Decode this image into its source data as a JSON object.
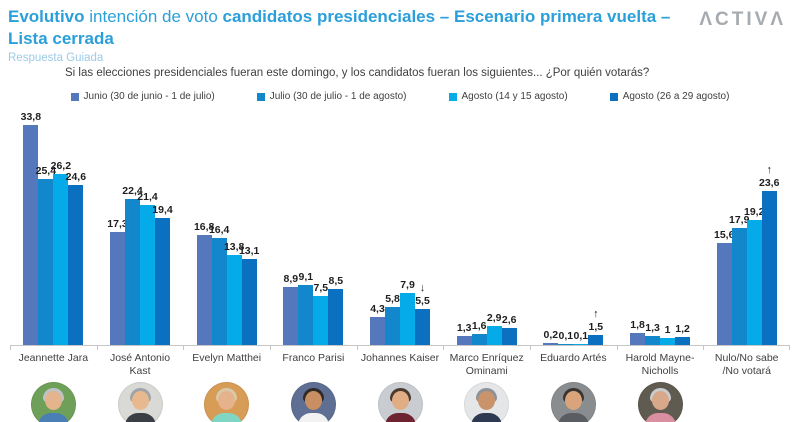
{
  "header": {
    "title_part1": "Evolutivo",
    "title_part2": " intención de voto ",
    "title_part3": "candidatos presidenciales – Escenario primera vuelta – Lista cerrada",
    "subtitle": "Respuesta Guiada",
    "question": "Si las elecciones presidenciales fueran este domingo, y los candidatos fueran los siguientes... ¿Por quién votarás?",
    "logo": "ΛCTIVΛ",
    "title_color": "#2B9FD9",
    "logo_color": "#A6ABB0"
  },
  "chart_data": {
    "type": "bar",
    "title": "Evolutivo intención de voto candidatos presidenciales – Escenario primera vuelta – Lista cerrada",
    "xlabel": "",
    "ylabel": "",
    "ylim": [
      0,
      35
    ],
    "grid": false,
    "legend_position": "top-center",
    "decimal_separator": ",",
    "categories": [
      "Jeannette Jara",
      "José Antonio Kast",
      "Evelyn Matthei",
      "Franco Parisi",
      "Johannes Kaiser",
      "Marco Enríquez Ominami",
      "Eduardo Artés",
      "Harold Mayne-Nicholls",
      "Nulo/No sabe /No votará"
    ],
    "series": [
      {
        "name": "Junio (30 de junio - 1 de julio)",
        "color": "#5578BC",
        "values": [
          33.8,
          17.3,
          16.8,
          8.9,
          4.3,
          1.3,
          0.2,
          1.8,
          15.6
        ],
        "labels": [
          "33,8",
          "17,3",
          "16,8",
          "8,9",
          "4,3",
          "1,3",
          "0,2",
          "1,8",
          "15,6"
        ]
      },
      {
        "name": "Julio (30 de julio - 1 de agosto)",
        "color": "#1287CB",
        "values": [
          25.4,
          22.4,
          16.4,
          9.1,
          5.8,
          1.6,
          0.1,
          1.3,
          17.9
        ],
        "labels": [
          "25,4",
          "22,4",
          "16,4",
          "9,1",
          "5,8",
          "1,6",
          "0,1",
          "1,3",
          "17,9"
        ]
      },
      {
        "name": "Agosto (14 y 15 agosto)",
        "color": "#05ABE9",
        "values": [
          26.2,
          21.4,
          13.8,
          7.5,
          7.9,
          2.9,
          0.1,
          1.0,
          19.2
        ],
        "labels": [
          "26,2",
          "21,4",
          "13,8",
          "7,5",
          "7,9",
          "2,9",
          "0,1",
          "1",
          "19,2"
        ]
      },
      {
        "name": "Agosto (26 a 29 agosto)",
        "color": "#0C70C0",
        "values": [
          24.6,
          19.4,
          13.1,
          8.5,
          5.5,
          2.6,
          1.5,
          1.2,
          23.6
        ],
        "labels": [
          "24,6",
          "19,4",
          "13,1",
          "8,5",
          "5,5",
          "2,6",
          "1,5",
          "1,2",
          "23,6"
        ]
      }
    ],
    "annotations": [
      {
        "series_index": 3,
        "category_index": 4,
        "symbol": "↓"
      },
      {
        "series_index": 3,
        "category_index": 6,
        "symbol": "↑"
      },
      {
        "series_index": 3,
        "category_index": 8,
        "symbol": "↑"
      }
    ]
  },
  "avatars": [
    {
      "name": "jeannette-jara",
      "bg": "#6FA05A",
      "hair": "#BFC3C7",
      "skin": "#E4B48C",
      "shirt": "#4A7FB5"
    },
    {
      "name": "jose-antonio-kast",
      "bg": "#D9D9D5",
      "hair": "#9FA4A8",
      "skin": "#E8B98E",
      "shirt": "#3A3F46"
    },
    {
      "name": "evelyn-matthei",
      "bg": "#D79C55",
      "hair": "#D8C9A8",
      "skin": "#E6B28C",
      "shirt": "#7FD6C2"
    },
    {
      "name": "franco-parisi",
      "bg": "#5E6F93",
      "hair": "#2E2A28",
      "skin": "#C98E62",
      "shirt": "#F2F2F2"
    },
    {
      "name": "johannes-kaiser",
      "bg": "#C9CDD1",
      "hair": "#4A3A30",
      "skin": "#E0AD85",
      "shirt": "#6E2430"
    },
    {
      "name": "marco-enriquez-ominami",
      "bg": "#E4E6E8",
      "hair": "#8E9296",
      "skin": "#C9936B",
      "shirt": "#2E3A52"
    },
    {
      "name": "eduardo-artes",
      "bg": "#8A8D90",
      "hair": "#3A3430",
      "skin": "#D9A47C",
      "shirt": "#5A5E62"
    },
    {
      "name": "harold-mayne-nicholls",
      "bg": "#5F5B50",
      "hair": "#C9CCCE",
      "skin": "#D9A88A",
      "shirt": "#D98FA0"
    },
    null
  ]
}
